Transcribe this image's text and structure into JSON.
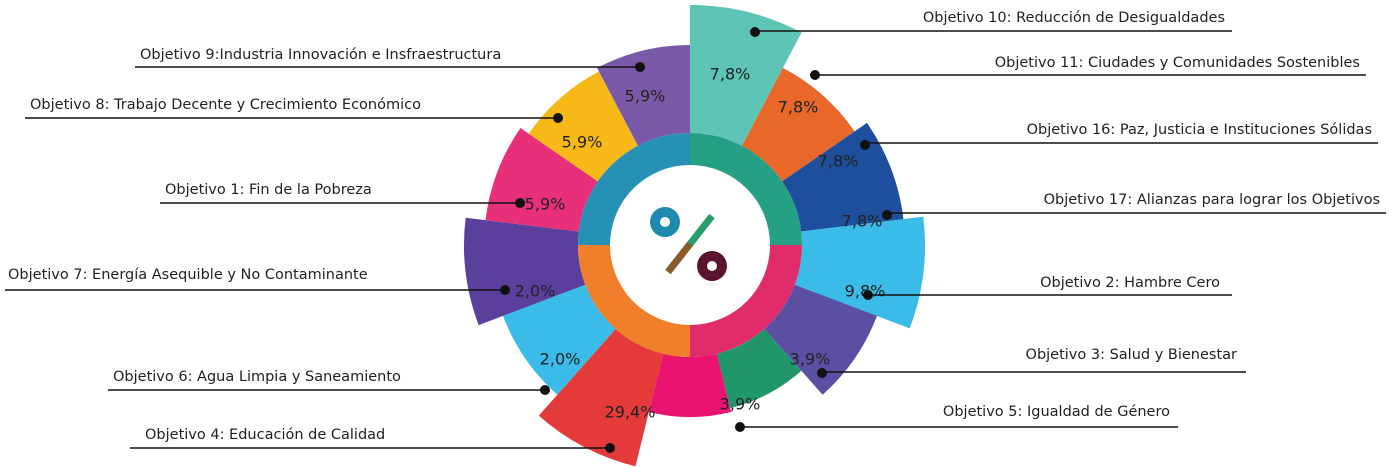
{
  "chart_data": {
    "type": "pie",
    "categories": [
      "Objetivo 10: Reducción de Desigualdades",
      "Objetivo 11: Ciudades y Comunidades Sostenibles",
      "Objetivo 16: Paz, Justicia e Instituciones Sólidas",
      "Objetivo 17: Alianzas para lograr los Objetivos",
      "Objetivo 2: Hambre Cero",
      "Objetivo 3: Salud y Bienestar",
      "Objetivo 5: Igualdad de Género",
      "Objetivo 4: Educación de Calidad",
      "Objetivo 6: Agua Limpia y Saneamiento",
      "Objetivo 7: Energía Asequible y No Contaminante",
      "Objetivo 1: Fin de la Pobreza",
      "Objetivo 8: Trabajo Decente y Crecimiento Económico",
      "Objetivo 9:Industria Innovación e Insfraestructura"
    ],
    "values": [
      7.8,
      7.8,
      7.8,
      7.8,
      9.8,
      3.9,
      3.9,
      29.4,
      2.0,
      2.0,
      5.9,
      5.9,
      5.9
    ],
    "value_labels": [
      "7,8%",
      "7,8%",
      "7,8%",
      "7,8%",
      "9,8%",
      "3,9%",
      "3,9%",
      "29,4%",
      "2,0%",
      "2,0%",
      "5,9%",
      "5,9%",
      "5,9%"
    ],
    "colors": [
      "#5ec4b6",
      "#e8682a",
      "#1d4f9c",
      "#3bbbe8",
      "#5b4fa3",
      "#21966a",
      "#e8146f",
      "#e53a3a",
      "#3bbbe8",
      "#5b3f9c",
      "#e8307a",
      "#f6b918",
      "#7a5aa8"
    ]
  }
}
